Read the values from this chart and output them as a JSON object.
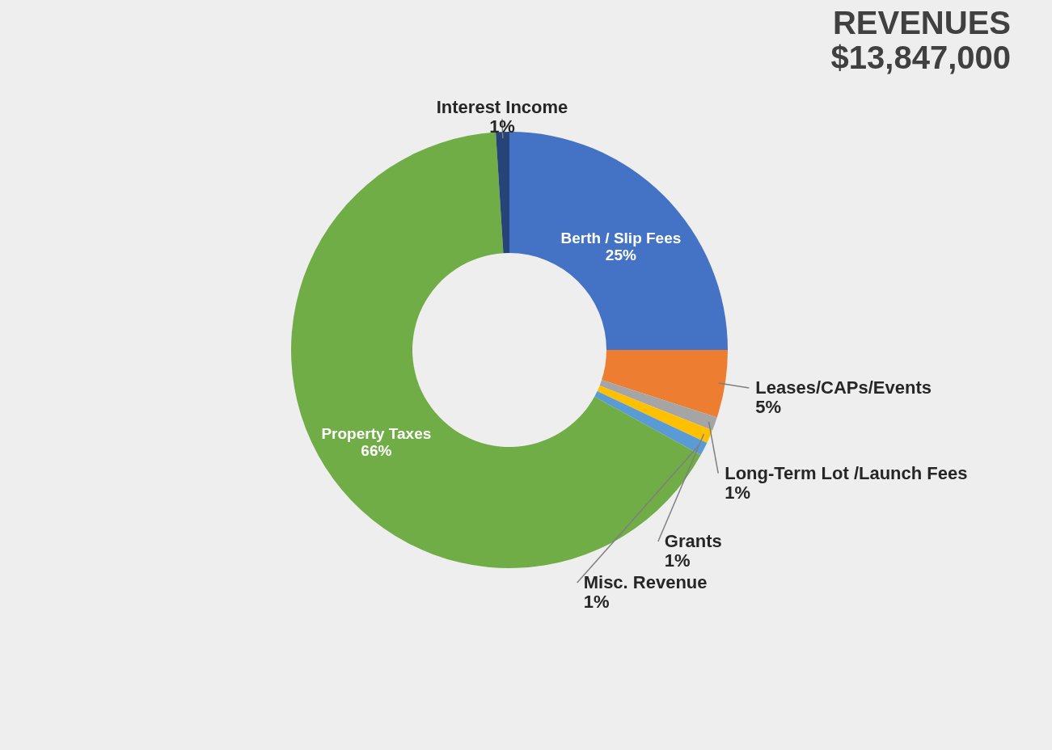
{
  "chart_data": {
    "type": "donut",
    "title": "REVENUES",
    "subtitle": "$13,847,000",
    "categories": [
      "Berth / Slip Fees",
      "Leases/CAPs/Events",
      "Long-Term Lot /Launch Fees",
      "Grants",
      "Misc. Revenue",
      "Property Taxes",
      "Interest Income"
    ],
    "values": [
      25,
      5,
      1,
      1,
      1,
      66,
      1
    ],
    "value_labels": [
      "25%",
      "5%",
      "1%",
      "1%",
      "1%",
      "66%",
      "1%"
    ],
    "colors": [
      "#4472c4",
      "#ed7d31",
      "#a5a5a5",
      "#ffc000",
      "#5b9bd5",
      "#70ad47",
      "#264478"
    ],
    "legend": false
  }
}
